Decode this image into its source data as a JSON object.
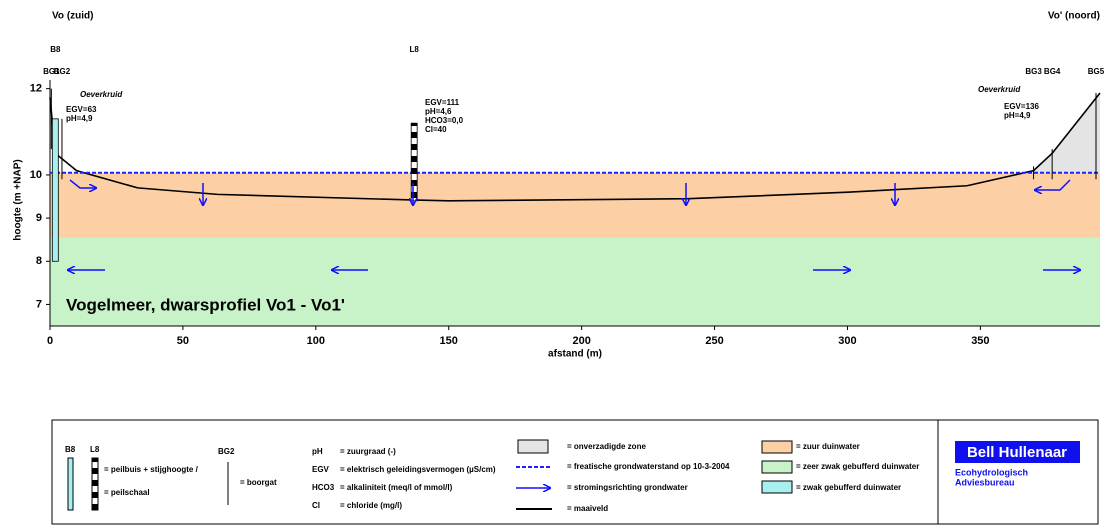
{
  "chart_data": {
    "type": "profile",
    "title": "Vogelmeer, dwarsprofiel Vo1 - Vo1'",
    "left_label": "Vo (zuid)",
    "right_label": "Vo' (noord)",
    "xlabel": "afstand (m)",
    "ylabel": "hoogte (m +NAP)",
    "xlim": [
      0,
      395
    ],
    "ylim": [
      6.5,
      12.2
    ],
    "xticks": [
      0,
      50,
      100,
      150,
      200,
      250,
      300,
      350
    ],
    "yticks": [
      7,
      8,
      9,
      10,
      12
    ],
    "series": [
      {
        "name": "= maaiveld",
        "color": "#000000",
        "dash": false,
        "x": [
          0,
          2,
          10,
          33,
          63,
          136,
          150,
          240,
          300,
          345,
          370,
          377,
          395
        ],
        "values": [
          11.8,
          10.5,
          10.1,
          9.7,
          9.55,
          9.42,
          9.4,
          9.45,
          9.6,
          9.75,
          10.1,
          10.5,
          11.9
        ]
      },
      {
        "name": "= freatische grondwaterstand op 10-3-2004",
        "color": "#2020ff",
        "dash": true,
        "x": [
          0,
          395
        ],
        "values": [
          10.05,
          10.05
        ]
      }
    ],
    "layers": [
      {
        "name": "= zuur duinwater",
        "color": "#fcd0a4",
        "bottom": 8.55,
        "top": 10.05
      },
      {
        "name": "= zeer zwak gebufferd duinwater",
        "color": "#c8f2c8",
        "bottom": 6.5,
        "top": 8.55
      }
    ],
    "unsaturated": {
      "name": "= onverzadigde zone",
      "color": "#e4e4e4",
      "x": [
        366,
        370,
        377,
        395,
        395
      ],
      "values": [
        10.05,
        10.1,
        10.5,
        11.9,
        10.05
      ]
    },
    "wells": [
      {
        "label": "B8",
        "x": 2,
        "bottom": 8.0,
        "top": 11.3,
        "color": "#a8f0f0"
      },
      {
        "label": "L8",
        "x": 137,
        "bottom": 9.4,
        "top": 11.2,
        "color": "striped"
      }
    ],
    "piezometers": [
      {
        "label": "BG1",
        "x": 0.5,
        "bottom": 10.6,
        "top": 12.0
      },
      {
        "label": "BG2",
        "x": 4.5,
        "bottom": 9.9,
        "top": 11.3
      },
      {
        "label": "BG3",
        "x": 370,
        "bottom": 9.9,
        "top": 10.2
      },
      {
        "label": "BG4",
        "x": 377,
        "bottom": 9.9,
        "top": 10.6
      },
      {
        "label": "BG5",
        "x": 393.5,
        "bottom": 9.9,
        "top": 11.9
      }
    ],
    "annotations": {
      "left_plant": "Oeverkruid",
      "right_plant": "Oeverkruid",
      "left_chem": [
        "EGV=63",
        "pH=4,9"
      ],
      "mid_chem": [
        "EGV=111",
        "pH=4,6",
        "HCO3=0,0",
        "Cl=40"
      ],
      "right_chem": [
        "EGV=136",
        "pH=4,9"
      ]
    },
    "legend": {
      "well_b": "B8",
      "well_l": "L8",
      "well_text": [
        "= peilbuis + stijghoogte /",
        "= peilschaal"
      ],
      "bg": "BG2",
      "bg_text": "= boorgat",
      "abbrevs": [
        [
          "pH",
          "= zuurgraad (-)"
        ],
        [
          "EGV",
          "= elektrisch geleidingsvermogen (µS/cm)"
        ],
        [
          "HCO3",
          "= alkaliniteit (meq/l of mmol/l)"
        ],
        [
          "Cl",
          "= chloride (mg/l)"
        ]
      ],
      "flow": "= stromingsrichting grondwater",
      "buffer_name": "= zwak gebufferd duinwater",
      "buffer_color": "#a8f0f0",
      "company": "Bell Hullenaar",
      "company_sub": [
        "Ecohydrologisch",
        "Adviesbureau"
      ]
    }
  }
}
